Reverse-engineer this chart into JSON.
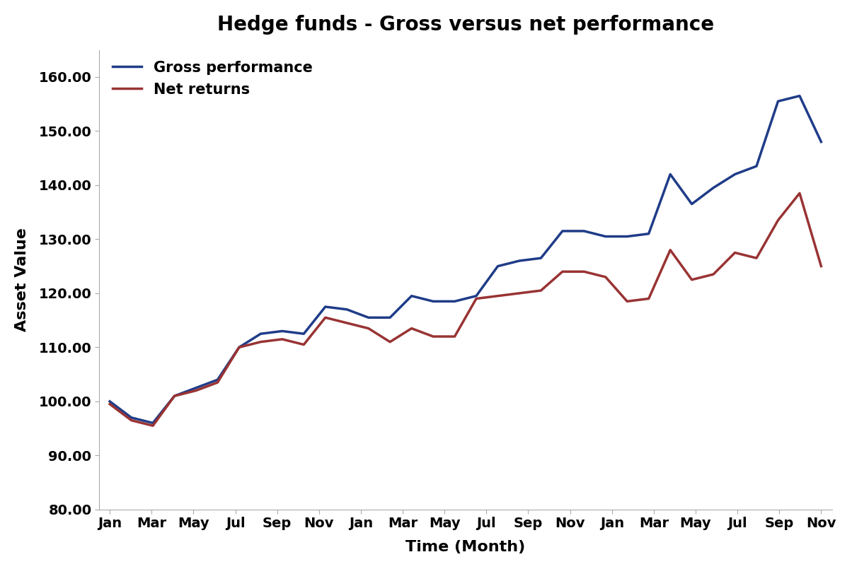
{
  "title": "Hedge funds - Gross versus net performance",
  "xlabel": "Time (Month)",
  "ylabel": "Asset Value",
  "ylim": [
    80,
    165
  ],
  "yticks": [
    80.0,
    90.0,
    100.0,
    110.0,
    120.0,
    130.0,
    140.0,
    150.0,
    160.0
  ],
  "x_labels": [
    "Jan",
    "Mar",
    "May",
    "Jul",
    "Sep",
    "Nov",
    "Jan",
    "Mar",
    "May",
    "Jul",
    "Sep",
    "Nov",
    "Jan",
    "Mar",
    "May",
    "Jul",
    "Sep",
    "Nov"
  ],
  "gross_color": "#1f3c88",
  "net_color": "#993333",
  "legend_gross": "Gross performance",
  "legend_net": "Net returns",
  "gross_values": [
    100.0,
    97.0,
    96.0,
    101.0,
    102.5,
    104.0,
    110.0,
    112.5,
    113.0,
    112.5,
    117.5,
    117.0,
    115.5,
    115.5,
    119.5,
    118.5,
    118.5,
    119.5,
    125.0,
    126.0,
    126.5,
    131.5,
    131.5,
    130.5,
    130.5,
    131.0,
    142.0,
    136.5,
    139.5,
    142.0,
    143.5,
    155.5,
    156.5,
    148.0
  ],
  "net_values": [
    99.5,
    96.5,
    95.5,
    101.0,
    102.0,
    103.5,
    110.0,
    111.0,
    111.5,
    110.5,
    115.5,
    114.5,
    113.5,
    111.0,
    113.5,
    112.0,
    112.0,
    119.0,
    119.5,
    120.0,
    120.5,
    124.0,
    124.0,
    123.0,
    118.5,
    119.0,
    128.0,
    122.5,
    123.5,
    127.5,
    126.5,
    133.5,
    138.5,
    125.0
  ],
  "bg_color": "#f9f9f9",
  "title_fontsize": 20,
  "tick_fontsize": 14,
  "label_fontsize": 16,
  "legend_fontsize": 15,
  "line_width": 2.5
}
